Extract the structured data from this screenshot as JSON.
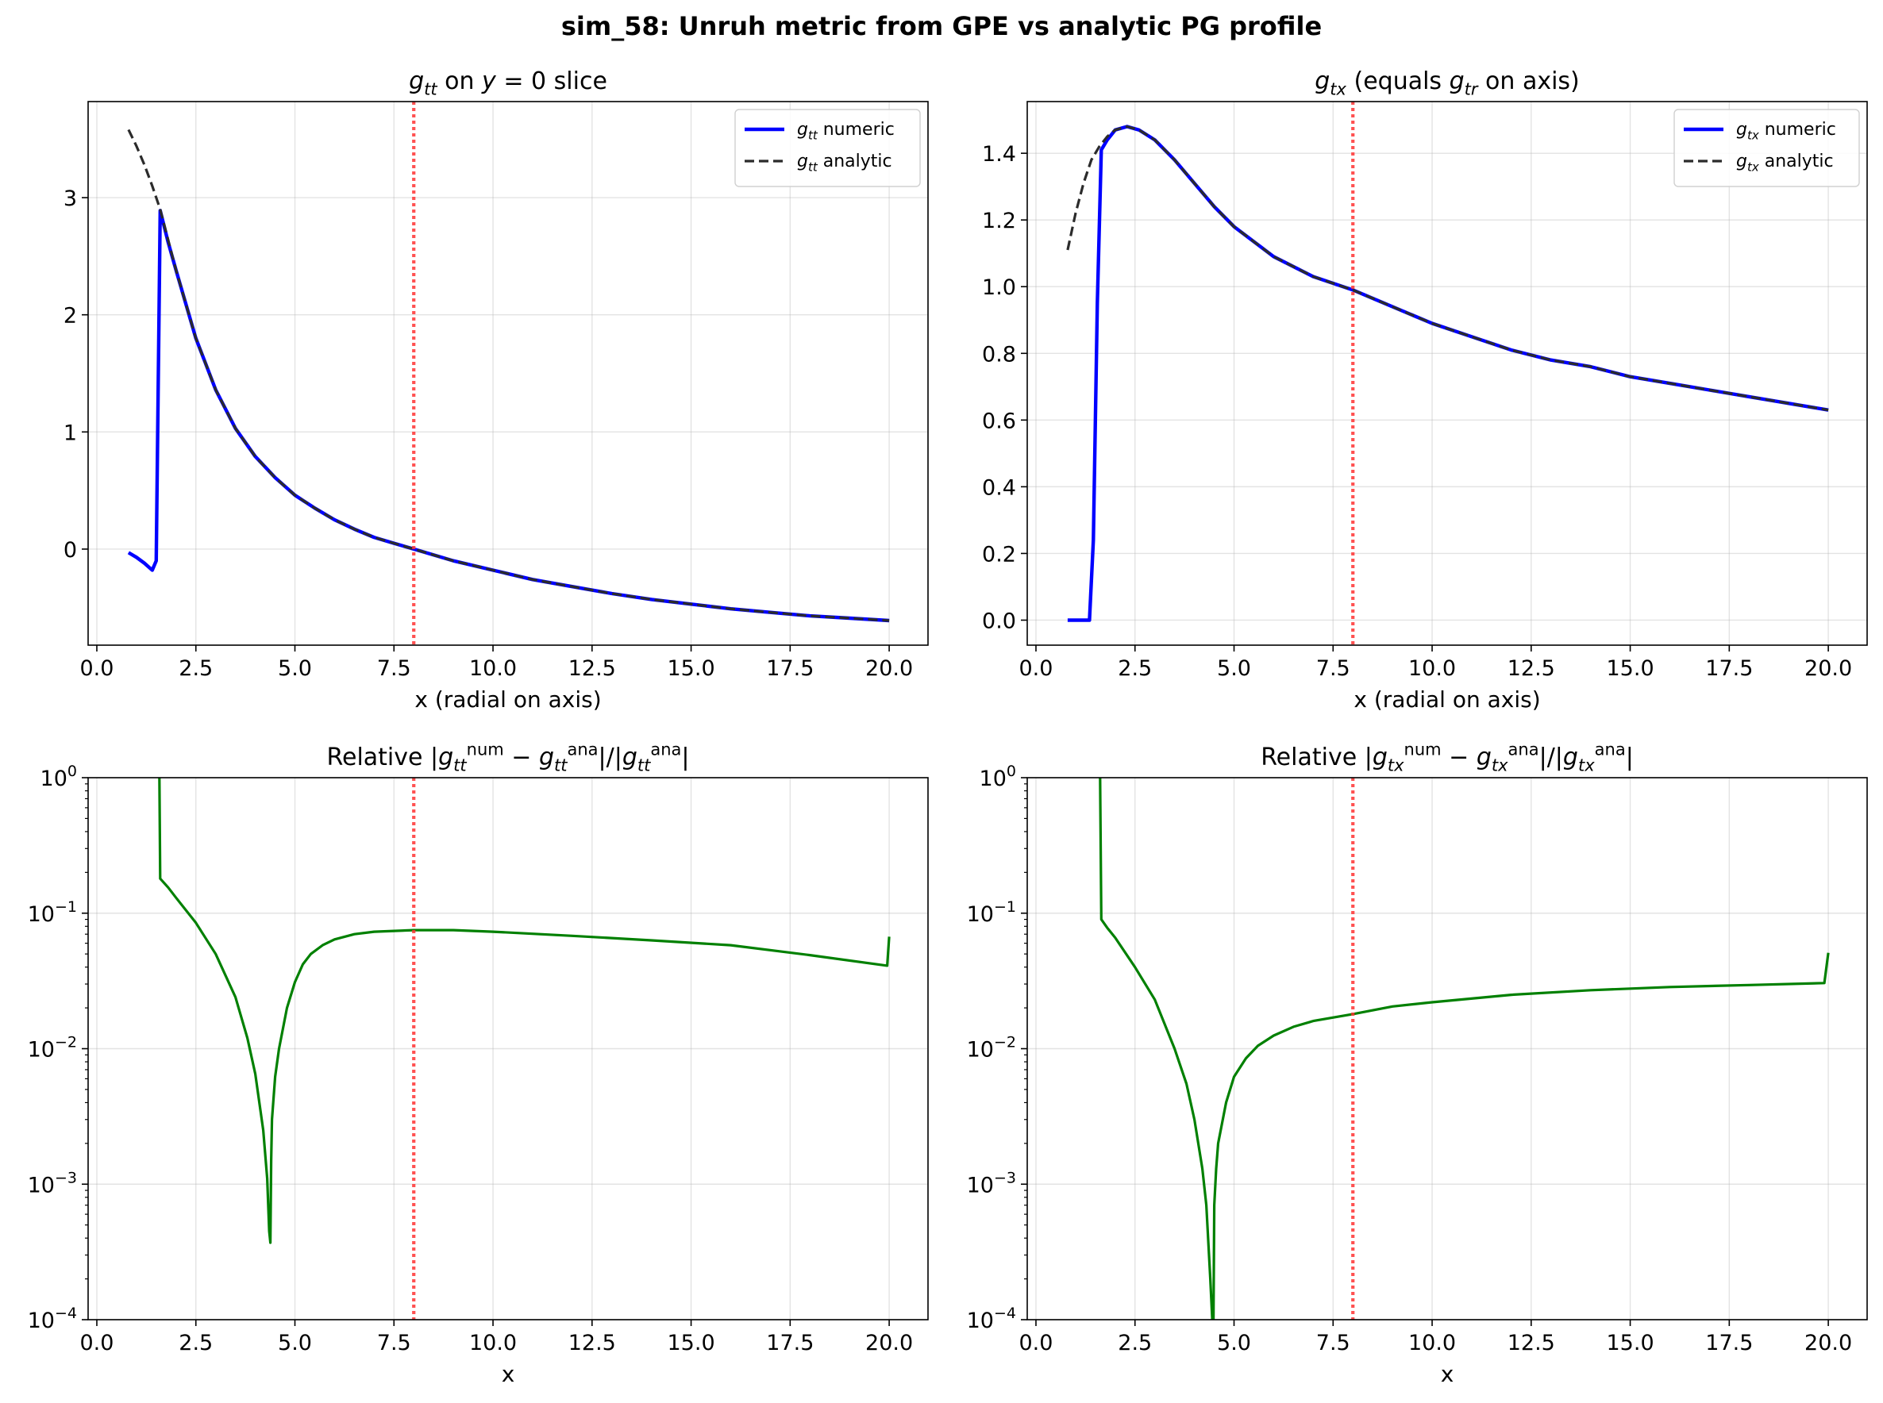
{
  "figure": {
    "suptitle": "sim_58: Unruh metric from GPE vs analytic PG profile"
  },
  "colors": {
    "numeric": "#0000ff",
    "analytic": "#2b2b2b",
    "error": "#008000",
    "horizon": "#ff3333"
  },
  "chart_data": [
    {
      "id": "gtt",
      "type": "line",
      "title": "g_tt on y = 0 slice",
      "title_parts": [
        [
          "g",
          "i"
        ],
        [
          "tt",
          "isub"
        ],
        [
          " on ",
          "n"
        ],
        [
          "y",
          "i"
        ],
        [
          " = 0 slice",
          "n"
        ]
      ],
      "xlabel": "x (radial on axis)",
      "ylabel": "",
      "xlim": [
        -0.22,
        20.98
      ],
      "ylim": [
        -0.82,
        3.82
      ],
      "xticks": [
        0.0,
        2.5,
        5.0,
        7.5,
        10.0,
        12.5,
        15.0,
        17.5,
        20.0
      ],
      "xtick_labels": [
        "0.0",
        "2.5",
        "5.0",
        "7.5",
        "10.0",
        "12.5",
        "15.0",
        "17.5",
        "20.0"
      ],
      "yscale": "linear",
      "yticks": [
        0,
        1,
        2,
        3
      ],
      "ytick_labels": [
        "0",
        "1",
        "2",
        "3"
      ],
      "vline_x": 8.0,
      "legend": "top-right",
      "series": [
        {
          "name": "numeric",
          "legend_parts": [
            [
              "g",
              "i"
            ],
            [
              "tt",
              "isub"
            ],
            [
              " numeric",
              "n"
            ]
          ],
          "style": "solid",
          "x": [
            0.8,
            1.0,
            1.2,
            1.4,
            1.5,
            1.6,
            1.8,
            2.0,
            2.5,
            3.0,
            3.5,
            4.0,
            4.5,
            5.0,
            5.5,
            6.0,
            6.5,
            7.0,
            7.5,
            8.0,
            9.0,
            10.0,
            11.0,
            12.0,
            13.0,
            14.0,
            15.0,
            16.0,
            17.0,
            18.0,
            19.0,
            20.0
          ],
          "y": [
            -0.03,
            -0.07,
            -0.12,
            -0.18,
            -0.1,
            2.89,
            2.62,
            2.38,
            1.8,
            1.36,
            1.03,
            0.79,
            0.61,
            0.46,
            0.35,
            0.25,
            0.17,
            0.1,
            0.05,
            0.0,
            -0.1,
            -0.18,
            -0.26,
            -0.32,
            -0.38,
            -0.43,
            -0.47,
            -0.51,
            -0.54,
            -0.57,
            -0.59,
            -0.61
          ]
        },
        {
          "name": "analytic",
          "legend_parts": [
            [
              "g",
              "i"
            ],
            [
              "tt",
              "isub"
            ],
            [
              " analytic",
              "n"
            ]
          ],
          "style": "dashed",
          "x": [
            0.8,
            1.0,
            1.2,
            1.4,
            1.6,
            1.8,
            2.0,
            2.5,
            3.0,
            3.5,
            4.0,
            4.5,
            5.0,
            5.5,
            6.0,
            6.5,
            7.0,
            7.5,
            8.0,
            9.0,
            10.0,
            11.0,
            12.0,
            13.0,
            14.0,
            15.0,
            16.0,
            17.0,
            18.0,
            19.0,
            20.0
          ],
          "y": [
            3.58,
            3.44,
            3.28,
            3.1,
            2.9,
            2.64,
            2.38,
            1.8,
            1.36,
            1.03,
            0.79,
            0.61,
            0.46,
            0.35,
            0.25,
            0.17,
            0.1,
            0.05,
            0.0,
            -0.1,
            -0.18,
            -0.26,
            -0.32,
            -0.38,
            -0.43,
            -0.47,
            -0.51,
            -0.54,
            -0.57,
            -0.59,
            -0.61
          ]
        }
      ]
    },
    {
      "id": "gtx",
      "type": "line",
      "title": "g_tx (equals g_tr on axis)",
      "title_parts": [
        [
          "g",
          "i"
        ],
        [
          "tx",
          "isub"
        ],
        [
          " (equals ",
          "n"
        ],
        [
          "g",
          "i"
        ],
        [
          "tr",
          "isub"
        ],
        [
          " on axis)",
          "n"
        ]
      ],
      "xlabel": "x (radial on axis)",
      "ylabel": "",
      "xlim": [
        -0.22,
        20.98
      ],
      "ylim": [
        -0.075,
        1.555
      ],
      "xticks": [
        0.0,
        2.5,
        5.0,
        7.5,
        10.0,
        12.5,
        15.0,
        17.5,
        20.0
      ],
      "xtick_labels": [
        "0.0",
        "2.5",
        "5.0",
        "7.5",
        "10.0",
        "12.5",
        "15.0",
        "17.5",
        "20.0"
      ],
      "yscale": "linear",
      "yticks": [
        0.0,
        0.2,
        0.4,
        0.6,
        0.8,
        1.0,
        1.2,
        1.4
      ],
      "ytick_labels": [
        "0.0",
        "0.2",
        "0.4",
        "0.6",
        "0.8",
        "1.0",
        "1.2",
        "1.4"
      ],
      "vline_x": 8.0,
      "legend": "top-right",
      "series": [
        {
          "name": "numeric",
          "legend_parts": [
            [
              "g",
              "i"
            ],
            [
              "tx",
              "isub"
            ],
            [
              " numeric",
              "n"
            ]
          ],
          "style": "solid",
          "x": [
            0.8,
            1.0,
            1.2,
            1.35,
            1.45,
            1.55,
            1.65,
            1.8,
            2.0,
            2.3,
            2.6,
            3.0,
            3.5,
            4.0,
            4.5,
            5.0,
            6.0,
            7.0,
            8.0,
            9.0,
            10.0,
            11.0,
            12.0,
            13.0,
            14.0,
            15.0,
            16.0,
            17.0,
            18.0,
            19.0,
            20.0
          ],
          "y": [
            0.0,
            0.0,
            0.0,
            0.0,
            0.24,
            0.95,
            1.41,
            1.44,
            1.47,
            1.48,
            1.47,
            1.44,
            1.38,
            1.31,
            1.24,
            1.18,
            1.09,
            1.03,
            0.99,
            0.94,
            0.89,
            0.85,
            0.81,
            0.78,
            0.76,
            0.73,
            0.71,
            0.69,
            0.67,
            0.65,
            0.63
          ]
        },
        {
          "name": "analytic",
          "legend_parts": [
            [
              "g",
              "i"
            ],
            [
              "tx",
              "isub"
            ],
            [
              " analytic",
              "n"
            ]
          ],
          "style": "dashed",
          "x": [
            0.8,
            1.0,
            1.2,
            1.4,
            1.6,
            1.8,
            2.0,
            2.3,
            2.6,
            3.0,
            3.5,
            4.0,
            4.5,
            5.0,
            6.0,
            7.0,
            8.0,
            9.0,
            10.0,
            11.0,
            12.0,
            13.0,
            14.0,
            15.0,
            16.0,
            17.0,
            18.0,
            19.0,
            20.0
          ],
          "y": [
            1.11,
            1.22,
            1.31,
            1.38,
            1.42,
            1.45,
            1.47,
            1.48,
            1.47,
            1.44,
            1.38,
            1.31,
            1.24,
            1.18,
            1.09,
            1.03,
            0.99,
            0.94,
            0.89,
            0.85,
            0.81,
            0.78,
            0.76,
            0.73,
            0.71,
            0.69,
            0.67,
            0.65,
            0.63
          ]
        }
      ]
    },
    {
      "id": "err_tt",
      "type": "line",
      "title": "Relative |g_tt^num − g_tt^ana|/|g_tt^ana|",
      "title_parts": [
        [
          "Relative |",
          "n"
        ],
        [
          "g",
          "i"
        ],
        [
          "tt",
          "isub"
        ],
        [
          "num",
          "sup"
        ],
        [
          " − ",
          "n"
        ],
        [
          "g",
          "i"
        ],
        [
          "tt",
          "isub"
        ],
        [
          "ana",
          "sup"
        ],
        [
          "|/|",
          "n"
        ],
        [
          "g",
          "i"
        ],
        [
          "tt",
          "isub"
        ],
        [
          "ana",
          "sup"
        ],
        [
          "|",
          "n"
        ]
      ],
      "xlabel": "x",
      "ylabel": "",
      "xlim": [
        -0.22,
        20.98
      ],
      "ylim": [
        0.0001,
        1
      ],
      "xticks": [
        0.0,
        2.5,
        5.0,
        7.5,
        10.0,
        12.5,
        15.0,
        17.5,
        20.0
      ],
      "xtick_labels": [
        "0.0",
        "2.5",
        "5.0",
        "7.5",
        "10.0",
        "12.5",
        "15.0",
        "17.5",
        "20.0"
      ],
      "yscale": "log",
      "yticks": [
        0.0001,
        0.001,
        0.01,
        0.1,
        1
      ],
      "ytick_labels": [
        [
          "10",
          "−4"
        ],
        [
          "10",
          "−3"
        ],
        [
          "10",
          "−2"
        ],
        [
          "10",
          "−1"
        ],
        [
          "10",
          "0"
        ]
      ],
      "vline_x": 8.0,
      "legend": "none",
      "series": [
        {
          "name": "",
          "style": "solid",
          "x": [
            1.58,
            1.6,
            1.8,
            2.0,
            2.5,
            3.0,
            3.5,
            3.8,
            4.0,
            4.2,
            4.3,
            4.35,
            4.38,
            4.4,
            4.42,
            4.5,
            4.6,
            4.8,
            5.0,
            5.2,
            5.4,
            5.7,
            6.0,
            6.5,
            7.0,
            8.0,
            9.0,
            10.0,
            12.0,
            14.0,
            16.0,
            18.0,
            19.95,
            20.0
          ],
          "y": [
            1.0,
            0.18,
            0.155,
            0.13,
            0.085,
            0.05,
            0.024,
            0.012,
            0.0065,
            0.0025,
            0.0011,
            0.00045,
            0.00037,
            0.0015,
            0.003,
            0.0062,
            0.01,
            0.02,
            0.031,
            0.042,
            0.05,
            0.058,
            0.064,
            0.07,
            0.073,
            0.075,
            0.075,
            0.073,
            0.068,
            0.063,
            0.058,
            0.049,
            0.041,
            0.067
          ]
        }
      ]
    },
    {
      "id": "err_tx",
      "type": "line",
      "title": "Relative |g_tx^num − g_tx^ana|/|g_tx^ana|",
      "title_parts": [
        [
          "Relative |",
          "n"
        ],
        [
          "g",
          "i"
        ],
        [
          "tx",
          "isub"
        ],
        [
          "num",
          "sup"
        ],
        [
          " − ",
          "n"
        ],
        [
          "g",
          "i"
        ],
        [
          "tx",
          "isub"
        ],
        [
          "ana",
          "sup"
        ],
        [
          "|/|",
          "n"
        ],
        [
          "g",
          "i"
        ],
        [
          "tx",
          "isub"
        ],
        [
          "ana",
          "sup"
        ],
        [
          "|",
          "n"
        ]
      ],
      "xlabel": "x",
      "ylabel": "",
      "xlim": [
        -0.22,
        20.98
      ],
      "ylim": [
        0.0001,
        1
      ],
      "xticks": [
        0.0,
        2.5,
        5.0,
        7.5,
        10.0,
        12.5,
        15.0,
        17.5,
        20.0
      ],
      "xtick_labels": [
        "0.0",
        "2.5",
        "5.0",
        "7.5",
        "10.0",
        "12.5",
        "15.0",
        "17.5",
        "20.0"
      ],
      "yscale": "log",
      "yticks": [
        0.0001,
        0.001,
        0.01,
        0.1,
        1
      ],
      "ytick_labels": [
        [
          "10",
          "−4"
        ],
        [
          "10",
          "−3"
        ],
        [
          "10",
          "−2"
        ],
        [
          "10",
          "−1"
        ],
        [
          "10",
          "0"
        ]
      ],
      "vline_x": 8.0,
      "legend": "none",
      "series": [
        {
          "name": "",
          "style": "solid",
          "x": [
            1.62,
            1.65,
            1.8,
            2.0,
            2.5,
            3.0,
            3.5,
            3.8,
            4.0,
            4.2,
            4.3,
            4.4,
            4.45,
            4.48,
            4.5,
            4.55,
            4.6,
            4.8,
            5.0,
            5.3,
            5.6,
            6.0,
            6.5,
            7.0,
            8.0,
            9.0,
            10.0,
            12.0,
            14.0,
            16.0,
            18.0,
            19.9,
            20.0
          ],
          "y": [
            1.0,
            0.09,
            0.078,
            0.066,
            0.04,
            0.023,
            0.01,
            0.0055,
            0.003,
            0.0013,
            0.0007,
            0.0002,
            0.0001,
            0.0001,
            0.0007,
            0.0013,
            0.002,
            0.004,
            0.0062,
            0.0085,
            0.0105,
            0.0125,
            0.0145,
            0.016,
            0.018,
            0.0205,
            0.022,
            0.025,
            0.027,
            0.0285,
            0.0295,
            0.0305,
            0.051
          ]
        }
      ]
    }
  ]
}
